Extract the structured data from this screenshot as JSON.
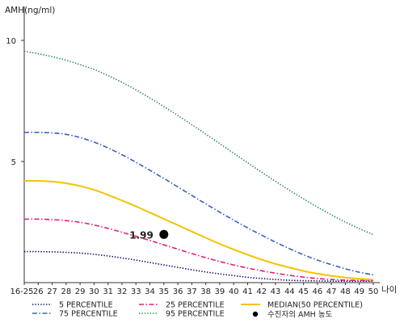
{
  "chart_data": {
    "type": "line",
    "ylabel": "AMH(ng/ml)",
    "xlabel": "나이",
    "ylim": [
      0,
      11
    ],
    "yticks": [
      5,
      10
    ],
    "x_ticks": [
      "16-25",
      "26",
      "27",
      "28",
      "29",
      "30",
      "31",
      "32",
      "33",
      "34",
      "35",
      "36",
      "37",
      "38",
      "39",
      "40",
      "41",
      "42",
      "43",
      "44",
      "45",
      "46",
      "47",
      "48",
      "49",
      "50"
    ],
    "x_numeric": [
      25,
      26,
      27,
      28,
      29,
      30,
      31,
      32,
      33,
      34,
      35,
      36,
      37,
      38,
      39,
      40,
      41,
      42,
      43,
      44,
      45,
      46,
      47,
      48,
      49,
      50
    ],
    "series": [
      {
        "name": "5 PERCENTILE",
        "color": "#0b0b6b",
        "style": "dotted",
        "values": [
          1.28,
          1.28,
          1.27,
          1.25,
          1.22,
          1.17,
          1.1,
          1.02,
          0.93,
          0.83,
          0.73,
          0.63,
          0.53,
          0.44,
          0.36,
          0.29,
          0.22,
          0.17,
          0.13,
          0.1,
          0.08,
          0.07,
          0.06,
          0.06,
          0.06,
          0.06
        ]
      },
      {
        "name": "25 PERCENTILE",
        "color": "#e0207a",
        "style": "dashdot",
        "values": [
          2.62,
          2.62,
          2.6,
          2.56,
          2.49,
          2.38,
          2.24,
          2.08,
          1.91,
          1.74,
          1.56,
          1.38,
          1.2,
          1.03,
          0.87,
          0.73,
          0.6,
          0.49,
          0.39,
          0.3,
          0.23,
          0.17,
          0.13,
          0.1,
          0.09,
          0.08
        ]
      },
      {
        "name": "MEDIAN(50 PERCENTILE)",
        "color": "#f2c400",
        "style": "solid",
        "values": [
          4.2,
          4.2,
          4.17,
          4.1,
          3.99,
          3.83,
          3.62,
          3.39,
          3.15,
          2.89,
          2.63,
          2.37,
          2.11,
          1.85,
          1.6,
          1.37,
          1.15,
          0.95,
          0.77,
          0.62,
          0.48,
          0.37,
          0.28,
          0.21,
          0.16,
          0.12
        ]
      },
      {
        "name": "75 PERCENTILE",
        "color": "#3a5fc0",
        "style": "dashdot",
        "values": [
          6.2,
          6.2,
          6.18,
          6.12,
          5.99,
          5.8,
          5.56,
          5.28,
          4.97,
          4.64,
          4.3,
          3.95,
          3.6,
          3.25,
          2.91,
          2.58,
          2.26,
          1.96,
          1.67,
          1.4,
          1.15,
          0.93,
          0.74,
          0.57,
          0.43,
          0.32
        ]
      },
      {
        "name": "95 PERCENTILE",
        "color": "#2a8a55",
        "style": "dotted",
        "values": [
          9.55,
          9.45,
          9.33,
          9.18,
          9.0,
          8.8,
          8.55,
          8.27,
          7.96,
          7.62,
          7.27,
          6.9,
          6.52,
          6.13,
          5.74,
          5.34,
          4.95,
          4.56,
          4.18,
          3.81,
          3.46,
          3.12,
          2.8,
          2.5,
          2.23,
          1.98
        ]
      }
    ],
    "points": [
      {
        "name": "수진자의 AMH 농도",
        "x": 35,
        "y": 1.99,
        "label": "1.99",
        "color": "#000000"
      }
    ],
    "legend_position": "bottom",
    "grid": false
  }
}
